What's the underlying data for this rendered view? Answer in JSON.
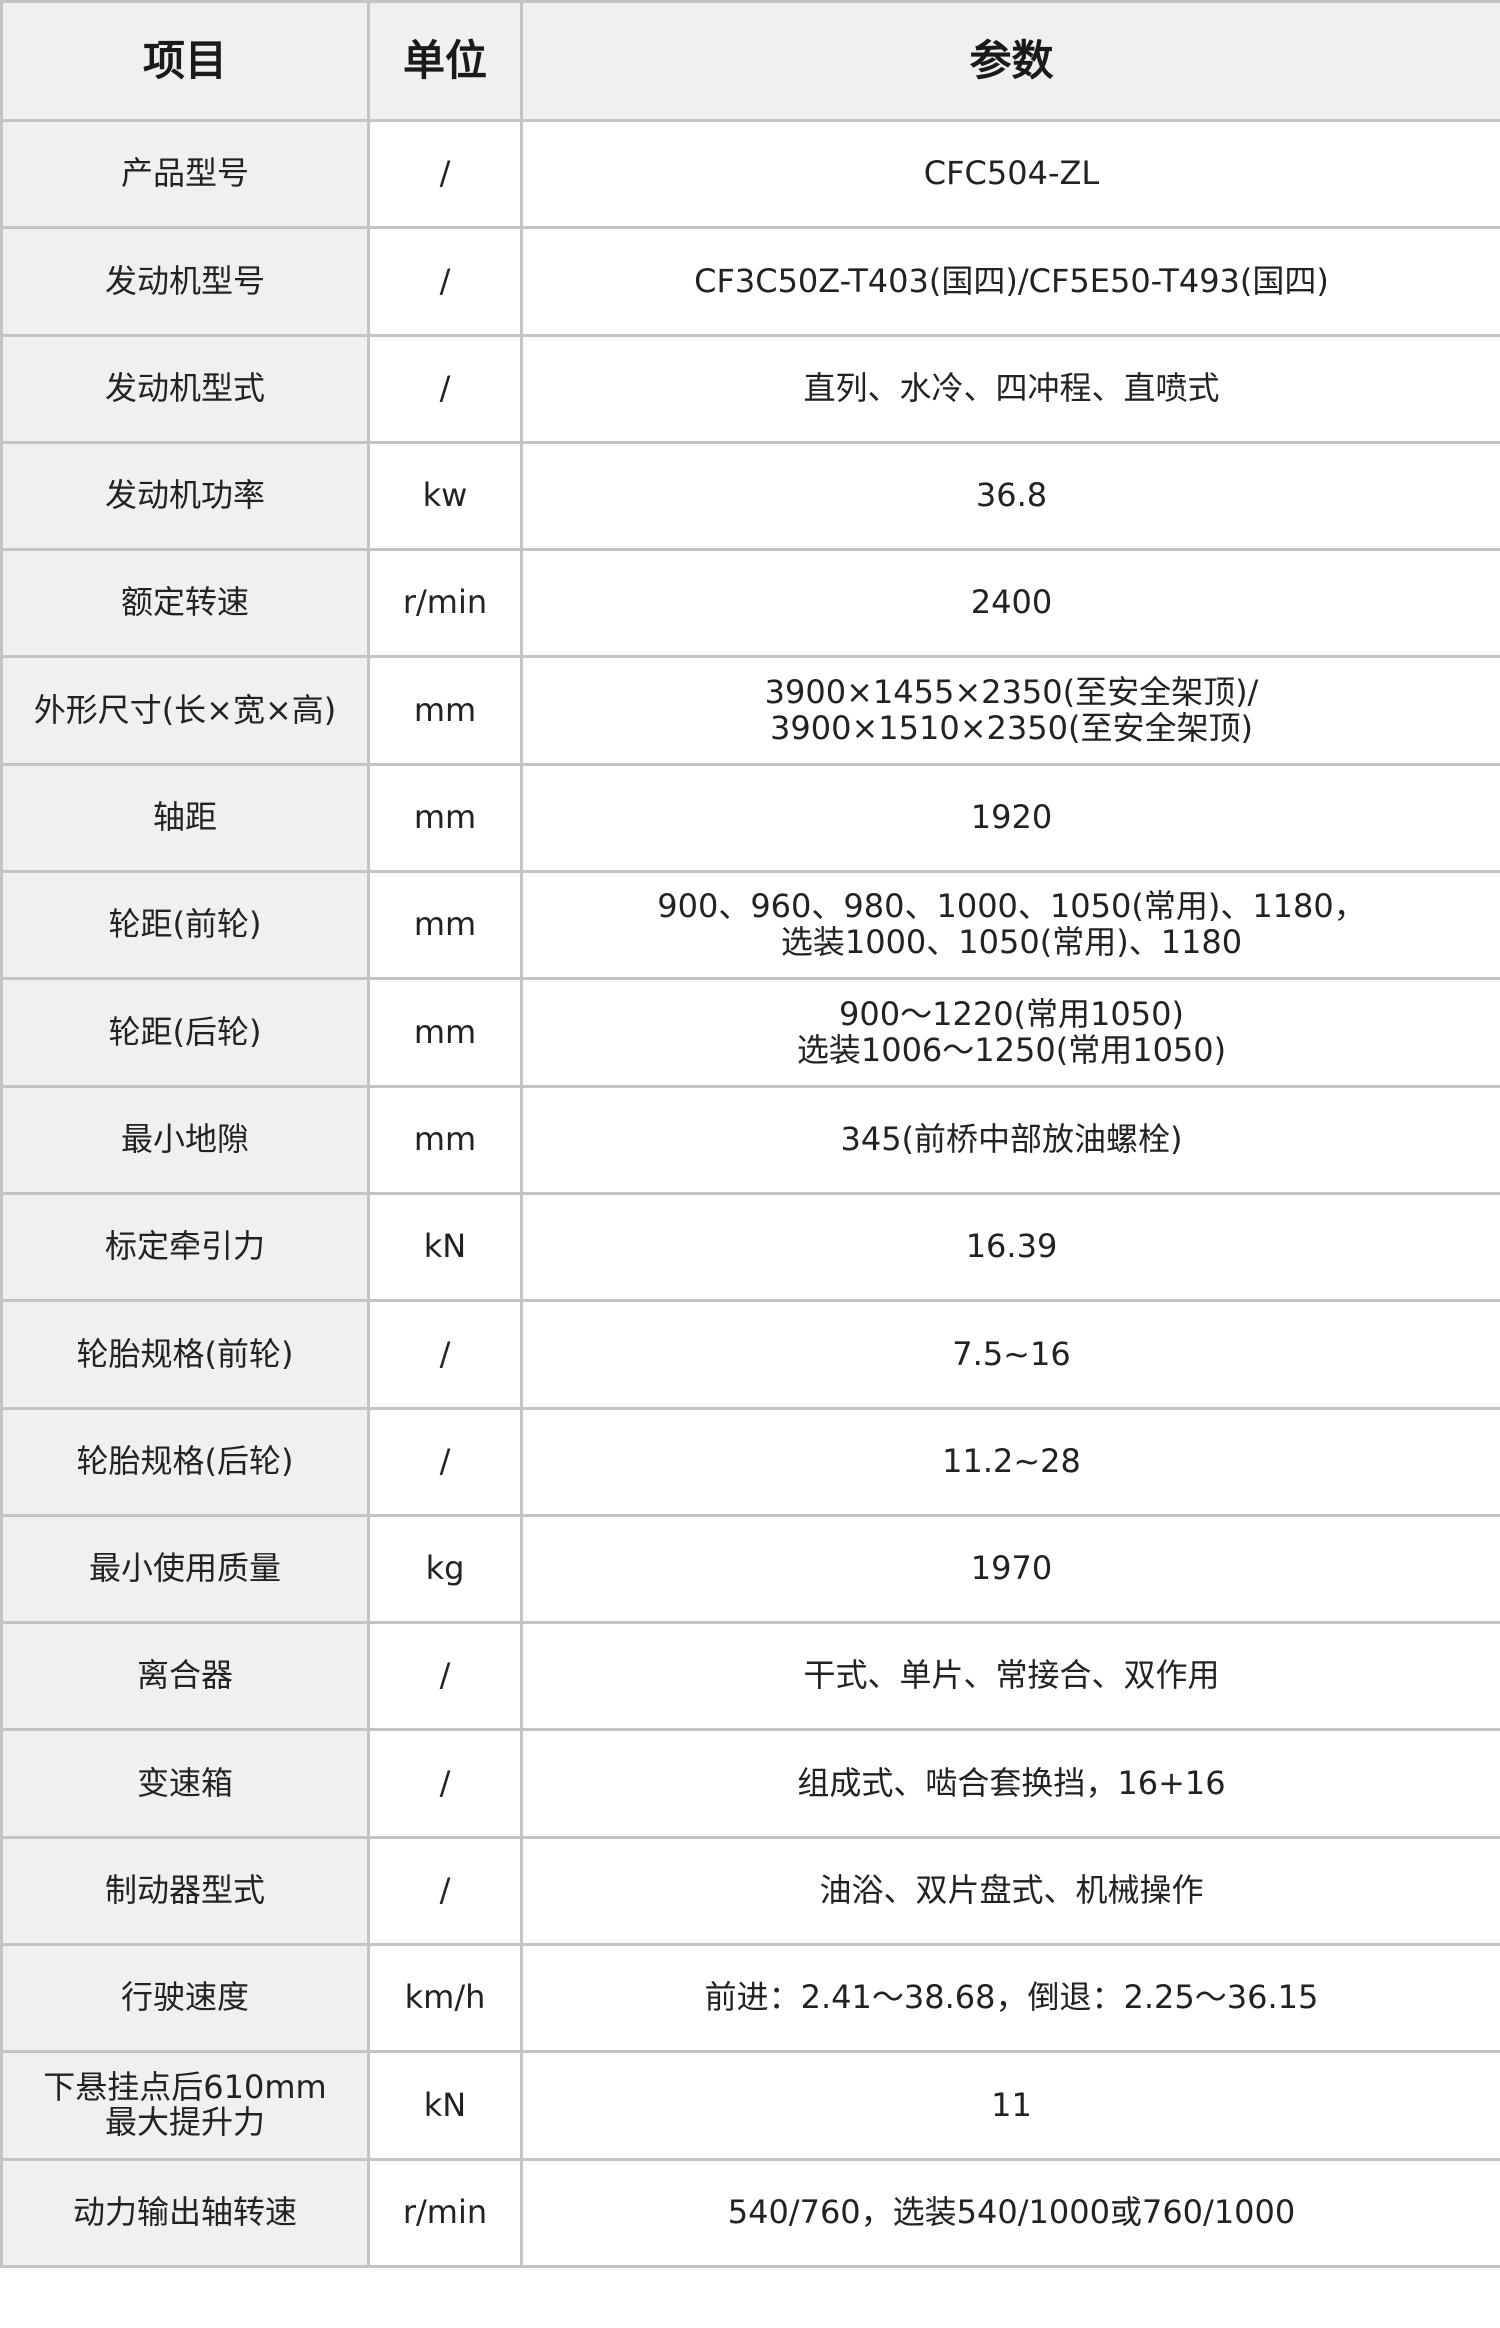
{
  "headers": {
    "item": "项目",
    "unit": "单位",
    "param": "参数"
  },
  "rows": [
    {
      "item": "产品型号",
      "unit": "/",
      "value": "CFC504-ZL"
    },
    {
      "item": "发动机型号",
      "unit": "/",
      "value": "CF3C50Z-T403(国四)/CF5E50-T493(国四)"
    },
    {
      "item": "发动机型式",
      "unit": "/",
      "value": "直列、水冷、四冲程、直喷式"
    },
    {
      "item": "发动机功率",
      "unit": "kw",
      "value": "36.8"
    },
    {
      "item": "额定转速",
      "unit": "r/min",
      "value": "2400"
    },
    {
      "item": "外形尺寸(长×宽×高)",
      "unit": "mm",
      "value": "3900×1455×2350(至安全架顶)/\n3900×1510×2350(至安全架顶)"
    },
    {
      "item": "轴距",
      "unit": "mm",
      "value": "1920"
    },
    {
      "item": "轮距(前轮)",
      "unit": "mm",
      "value": "900、960、980、1000、1050(常用)、1180，\n选装1000、1050(常用)、1180"
    },
    {
      "item": "轮距(后轮)",
      "unit": "mm",
      "value": "900～1220(常用1050)\n选装1006～1250(常用1050)"
    },
    {
      "item": "最小地隙",
      "unit": "mm",
      "value": "345(前桥中部放油螺栓)"
    },
    {
      "item": "标定牵引力",
      "unit": "kN",
      "value": "16.39"
    },
    {
      "item": "轮胎规格(前轮)",
      "unit": "/",
      "value": "7.5~16"
    },
    {
      "item": "轮胎规格(后轮)",
      "unit": "/",
      "value": "11.2~28"
    },
    {
      "item": "最小使用质量",
      "unit": "kg",
      "value": "1970"
    },
    {
      "item": "离合器",
      "unit": "/",
      "value": "干式、单片、常接合、双作用"
    },
    {
      "item": "变速箱",
      "unit": "/",
      "value": "组成式、啮合套换挡，16+16"
    },
    {
      "item": "制动器型式",
      "unit": "/",
      "value": "油浴、双片盘式、机械操作"
    },
    {
      "item": "行驶速度",
      "unit": "km/h",
      "value": "前进：2.41～38.68，倒退：2.25～36.15"
    },
    {
      "item": "下悬挂点后610mm\n最大提升力",
      "unit": "kN",
      "value": "11"
    },
    {
      "item": "动力输出轴转速",
      "unit": "r/min",
      "value": "540/760，选装540/1000或760/1000"
    }
  ]
}
